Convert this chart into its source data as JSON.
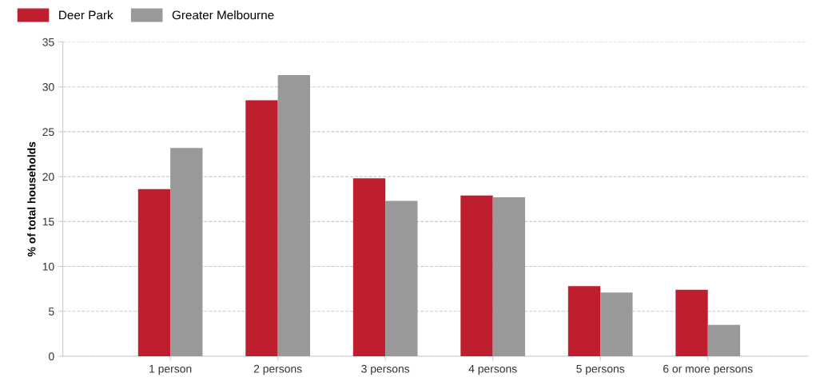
{
  "chart_data": {
    "type": "bar",
    "ylabel": "% of total households",
    "categories": [
      "1 person",
      "2 persons",
      "3 persons",
      "4 persons",
      "5 persons",
      "6 or more persons"
    ],
    "series": [
      {
        "name": "Deer Park",
        "color": "#be1e2d",
        "values": [
          18.6,
          28.5,
          19.8,
          17.9,
          7.8,
          7.4
        ]
      },
      {
        "name": "Greater Melbourne",
        "color": "#999999",
        "values": [
          23.2,
          31.3,
          17.3,
          17.7,
          7.1,
          3.5
        ]
      }
    ],
    "ylim": [
      0,
      35
    ],
    "yticks": [
      0,
      5,
      10,
      15,
      20,
      25,
      30,
      35
    ],
    "grid": "y",
    "legend": "top left"
  }
}
